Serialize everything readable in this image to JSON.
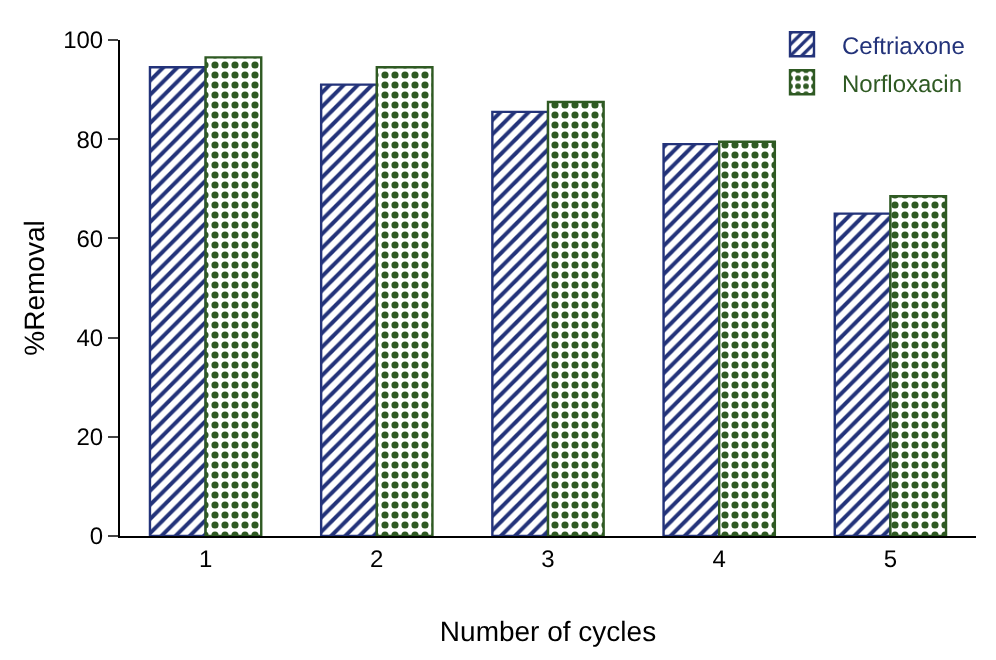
{
  "chart_data": {
    "type": "bar",
    "xlabel": "Number of cycles",
    "ylabel": "%Removal",
    "categories": [
      "1",
      "2",
      "3",
      "4",
      "5"
    ],
    "series": [
      {
        "name": "Ceftriaxone",
        "color": "#23337a",
        "values": [
          94.5,
          91,
          85.5,
          79,
          65
        ]
      },
      {
        "name": "Norfloxacin",
        "color": "#2f5a23",
        "values": [
          96.5,
          94.5,
          87.5,
          79.5,
          68.5
        ]
      }
    ],
    "ylim": [
      0,
      100
    ],
    "yticks": [
      0,
      20,
      40,
      60,
      80,
      100
    ],
    "grid": false,
    "legend": "top right"
  }
}
